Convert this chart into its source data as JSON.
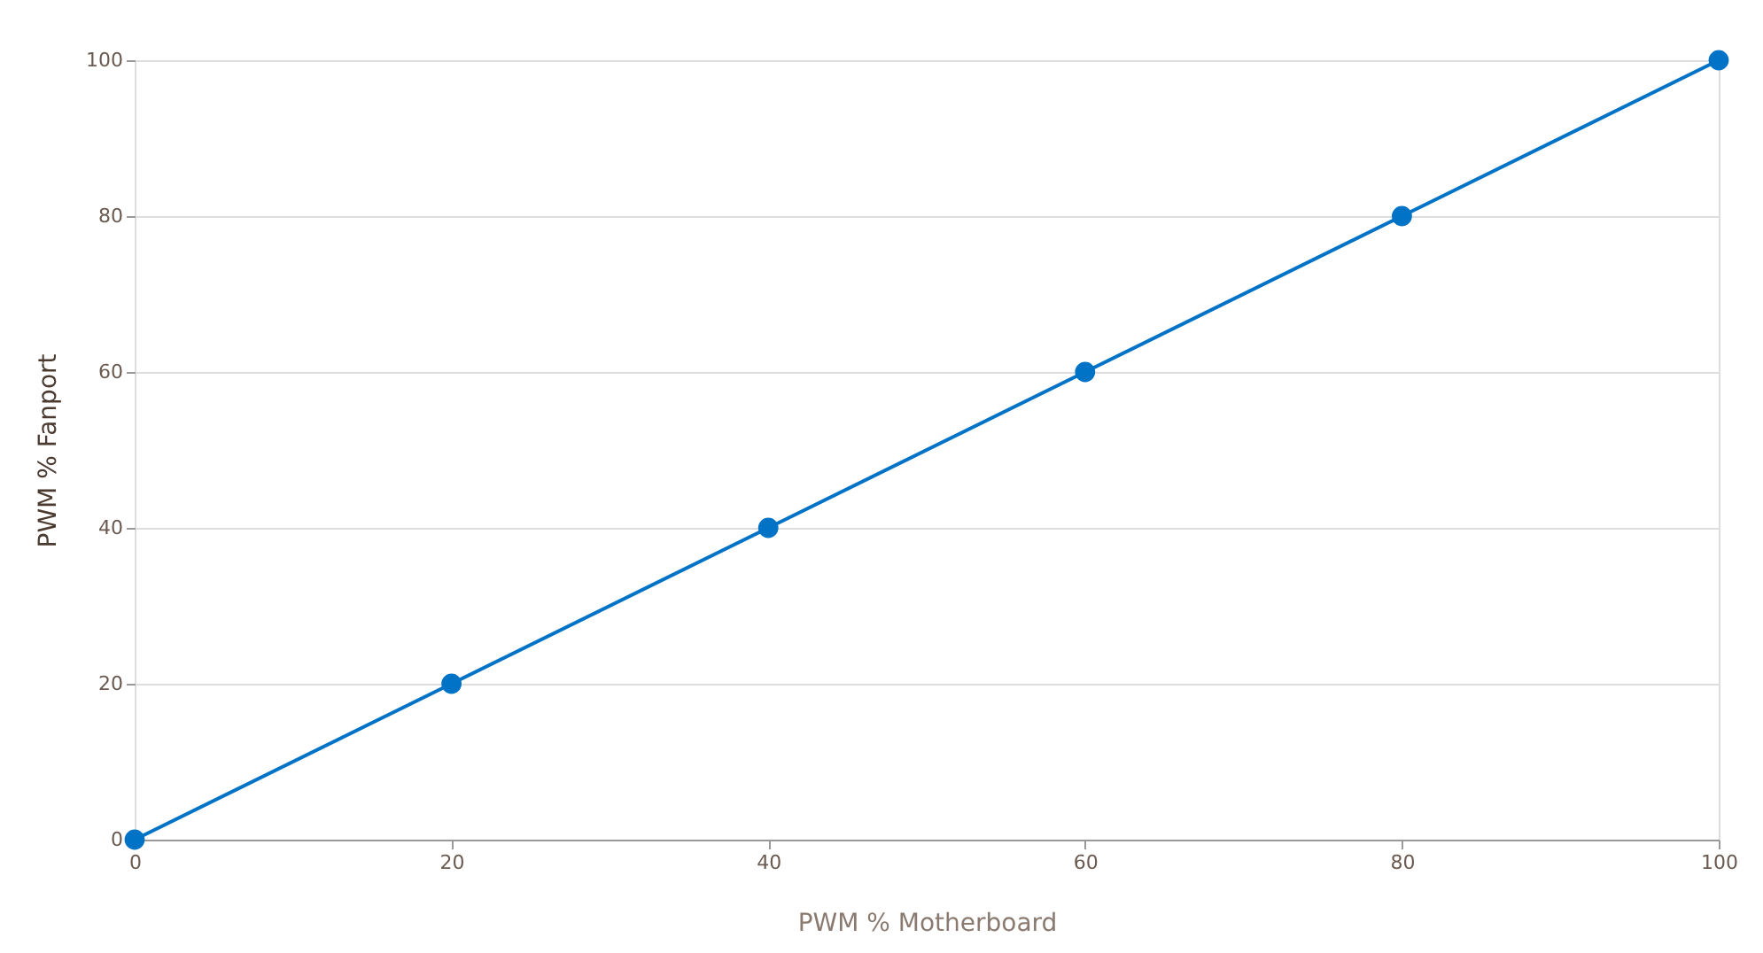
{
  "chart_data": {
    "type": "line",
    "xlabel": "PWM % Motherboard",
    "ylabel": "PWM % Fanport",
    "x": [
      0,
      20,
      40,
      60,
      80,
      100
    ],
    "series": [
      {
        "color": "#0073c6",
        "values": [
          0,
          20,
          40,
          60,
          80,
          100
        ]
      }
    ],
    "xlim": [
      0,
      100
    ],
    "xticks": [
      0,
      20,
      40,
      60,
      80,
      100
    ],
    "ylim": [
      0,
      100
    ],
    "yticks": [
      0,
      20,
      40,
      60,
      80,
      100
    ],
    "grid": "y",
    "marker": "circle",
    "line_style": "solid"
  }
}
